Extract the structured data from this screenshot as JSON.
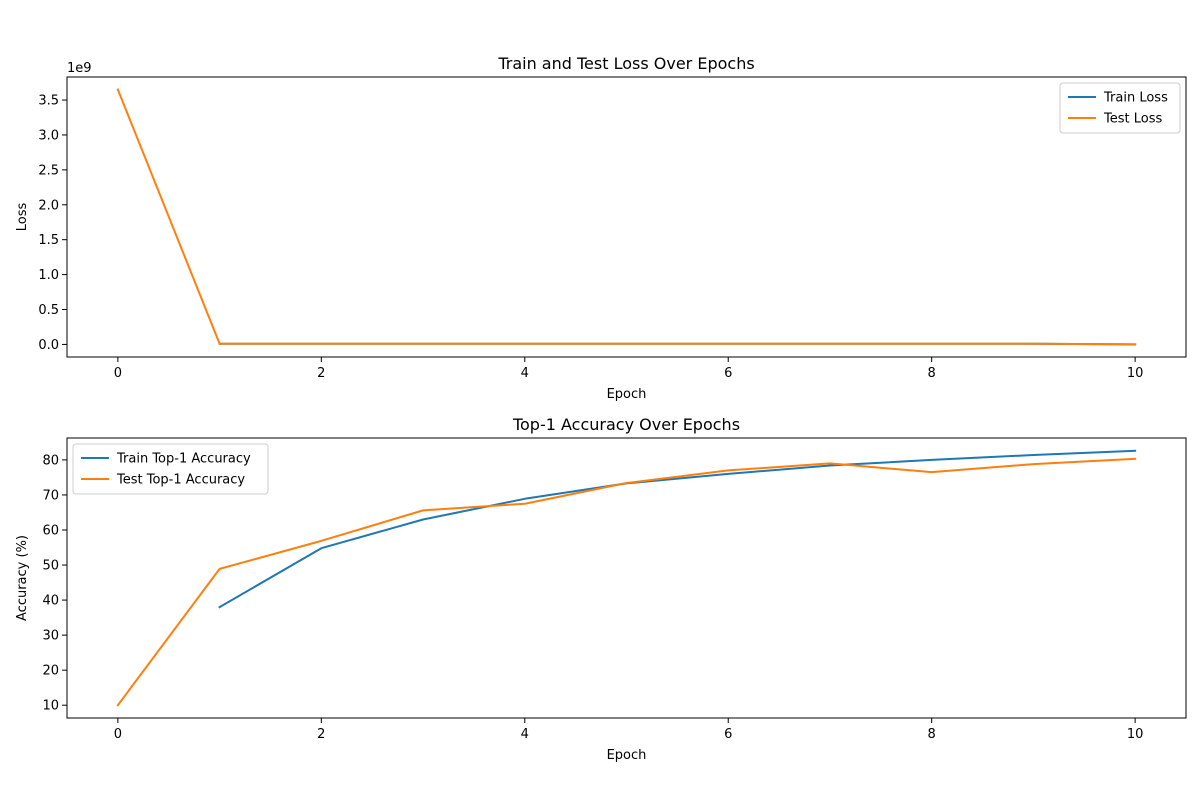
{
  "chart_data": [
    {
      "type": "line",
      "title": "Train and Test Loss Over Epochs",
      "xlabel": "Epoch",
      "ylabel": "Loss",
      "y_multiplier_label": "1e9",
      "xlim": [
        -0.5,
        10.5
      ],
      "ylim": [
        -0.18,
        3.83
      ],
      "xticks": [
        0,
        2,
        4,
        6,
        8,
        10
      ],
      "xtick_labels": [
        "0",
        "2",
        "4",
        "6",
        "8",
        "10"
      ],
      "yticks": [
        0,
        0.5,
        1.0,
        1.5,
        2.0,
        2.5,
        3.0,
        3.5
      ],
      "ytick_labels": [
        "0.0",
        "0.5",
        "1.0",
        "1.5",
        "2.0",
        "2.5",
        "3.0",
        "3.5"
      ],
      "grid": false,
      "legend_position": "upper-right",
      "series": [
        {
          "name": "Train Loss",
          "color": "#1f77b4",
          "x": [
            0,
            1,
            2,
            3,
            4,
            5,
            6,
            7,
            8,
            9,
            10
          ],
          "values": [
            null,
            0.01,
            0.01,
            0.01,
            0.01,
            0.01,
            0.01,
            0.01,
            0.01,
            0.01,
            0.0
          ]
        },
        {
          "name": "Test Loss",
          "color": "#ff7f0e",
          "x": [
            0,
            1,
            2,
            3,
            4,
            5,
            6,
            7,
            8,
            9,
            10
          ],
          "values": [
            3.65,
            0.01,
            0.01,
            0.01,
            0.01,
            0.01,
            0.01,
            0.01,
            0.01,
            0.01,
            0.0
          ]
        }
      ]
    },
    {
      "type": "line",
      "title": "Top-1 Accuracy Over Epochs",
      "xlabel": "Epoch",
      "ylabel": "Accuracy (%)",
      "xlim": [
        -0.5,
        10.5
      ],
      "ylim": [
        6.35,
        86.25
      ],
      "xticks": [
        0,
        2,
        4,
        6,
        8,
        10
      ],
      "xtick_labels": [
        "0",
        "2",
        "4",
        "6",
        "8",
        "10"
      ],
      "yticks": [
        10,
        20,
        30,
        40,
        50,
        60,
        70,
        80
      ],
      "ytick_labels": [
        "10",
        "20",
        "30",
        "40",
        "50",
        "60",
        "70",
        "80"
      ],
      "grid": false,
      "legend_position": "upper-left",
      "series": [
        {
          "name": "Train Top-1 Accuracy",
          "color": "#1f77b4",
          "x": [
            0,
            1,
            2,
            3,
            4,
            5,
            6,
            7,
            8,
            9,
            10
          ],
          "values": [
            null,
            38.0,
            54.8,
            63.0,
            68.9,
            73.3,
            76.0,
            78.4,
            80.0,
            81.4,
            82.6
          ]
        },
        {
          "name": "Test Top-1 Accuracy",
          "color": "#ff7f0e",
          "x": [
            0,
            1,
            2,
            3,
            4,
            5,
            6,
            7,
            8,
            9,
            10
          ],
          "values": [
            10.0,
            48.9,
            56.9,
            65.6,
            67.5,
            73.4,
            77.0,
            79.0,
            76.5,
            78.8,
            80.3
          ]
        }
      ]
    }
  ]
}
